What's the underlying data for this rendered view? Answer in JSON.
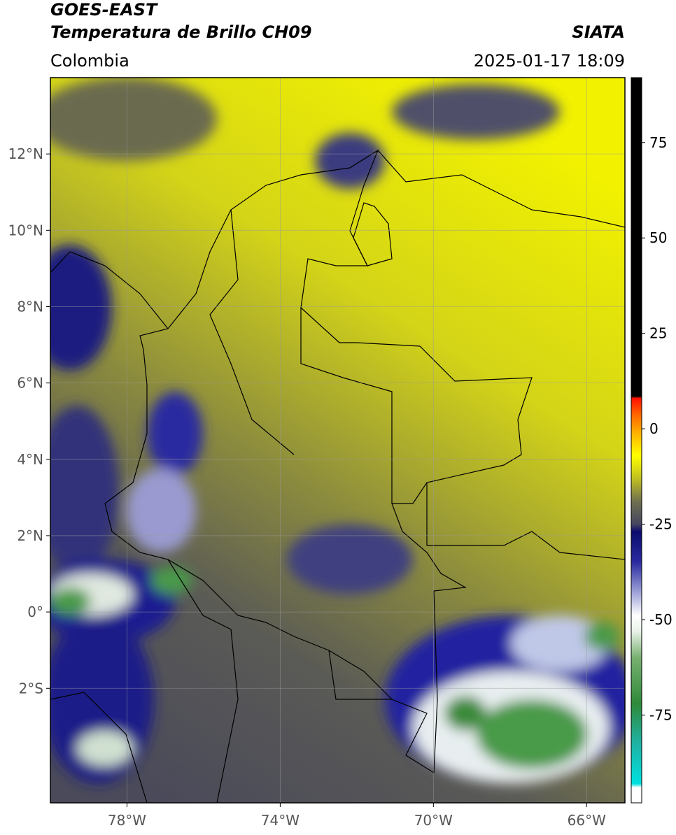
{
  "header": {
    "title": "GOES-EAST",
    "subtitle": "Temperatura de Brillo CH09",
    "source": "SIATA",
    "region": "Colombia",
    "datetime": "2025-01-17 18:09"
  },
  "map": {
    "xlim": [
      -80,
      -65
    ],
    "ylim": [
      -5,
      14
    ],
    "xticks": [
      {
        "value": -78,
        "label": "78°W"
      },
      {
        "value": -74,
        "label": "74°W"
      },
      {
        "value": -70,
        "label": "70°W"
      },
      {
        "value": -66,
        "label": "66°W"
      }
    ],
    "yticks": [
      {
        "value": 12,
        "label": "12°N"
      },
      {
        "value": 10,
        "label": "10°N"
      },
      {
        "value": 8,
        "label": "8°N"
      },
      {
        "value": 6,
        "label": "6°N"
      },
      {
        "value": 4,
        "label": "4°N"
      },
      {
        "value": 2,
        "label": "2°N"
      },
      {
        "value": 0,
        "label": "0°"
      },
      {
        "value": -2,
        "label": "2°S"
      }
    ],
    "grid": true
  },
  "colorbar": {
    "lim": [
      -98,
      92
    ],
    "ticks": [
      75,
      50,
      25,
      0,
      -25,
      -50,
      -75
    ],
    "stops": [
      {
        "value": -98,
        "color": "#ffffff"
      },
      {
        "value": -94,
        "color": "#ffffff"
      },
      {
        "value": -93,
        "color": "#00e0e0"
      },
      {
        "value": -82,
        "color": "#20b0a0"
      },
      {
        "value": -72,
        "color": "#2e8a3a"
      },
      {
        "value": -60,
        "color": "#78b070"
      },
      {
        "value": -53,
        "color": "#e8f2e8"
      },
      {
        "value": -49,
        "color": "#ffffff"
      },
      {
        "value": -43,
        "color": "#a0a4d8"
      },
      {
        "value": -35,
        "color": "#2c2ca0"
      },
      {
        "value": -27,
        "color": "#0a0a6e"
      },
      {
        "value": -25,
        "color": "#454560"
      },
      {
        "value": -19,
        "color": "#707050"
      },
      {
        "value": -13,
        "color": "#c0c020"
      },
      {
        "value": -7,
        "color": "#ffff00"
      },
      {
        "value": -1,
        "color": "#ffb000"
      },
      {
        "value": 4,
        "color": "#ff6000"
      },
      {
        "value": 8,
        "color": "#ff1000"
      },
      {
        "value": 8.5,
        "color": "#000000"
      },
      {
        "value": 92,
        "color": "#000000"
      }
    ]
  }
}
